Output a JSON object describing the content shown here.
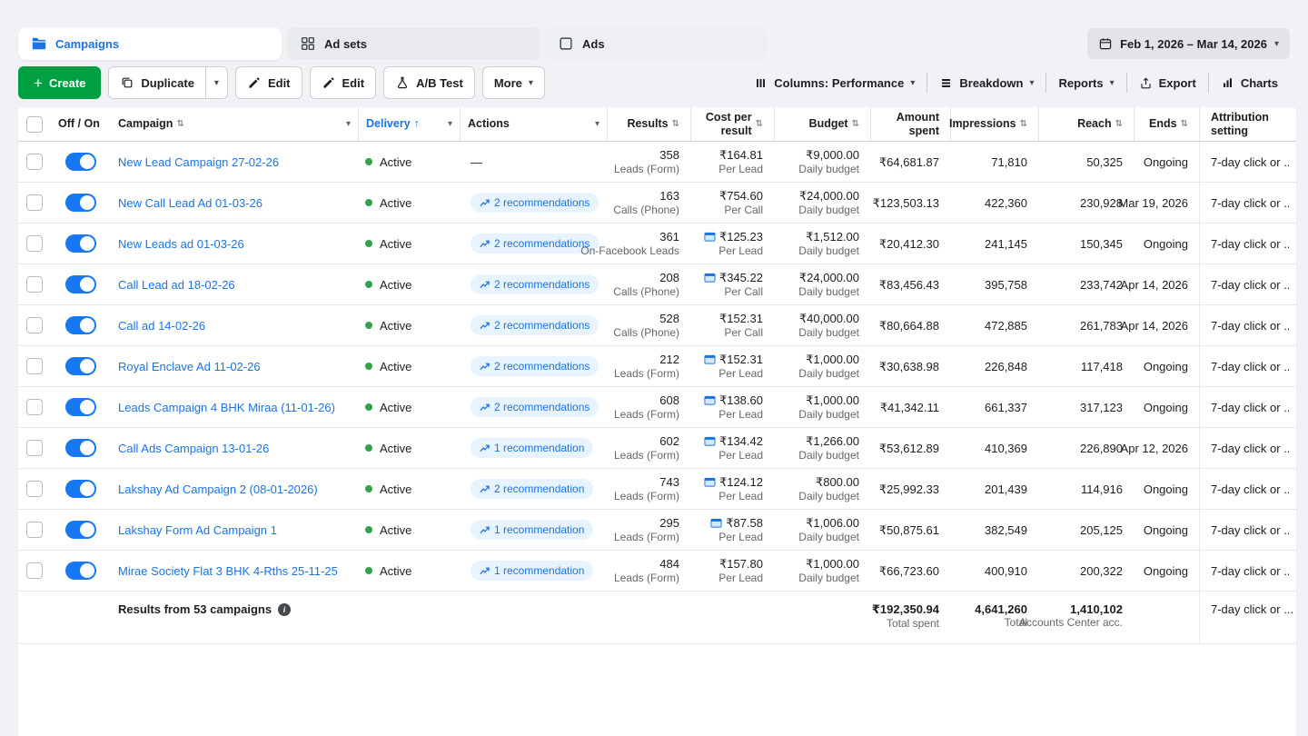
{
  "colors": {
    "accent_blue": "#1b74e4",
    "create_green": "#00a042",
    "status_green": "#31a24c",
    "pill_bg": "#e7f3ff"
  },
  "icons": [
    "campaigns-folder-icon",
    "adsets-grid-icon",
    "ads-square-icon",
    "calendar-icon",
    "plus-icon",
    "duplicate-icon",
    "pencil-icon",
    "ab-test-icon",
    "chevron-down-icon",
    "columns-icon",
    "breakdown-icon",
    "export-icon",
    "charts-icon",
    "trend-up-icon",
    "cost-info-icon",
    "info-icon",
    "sort-icon"
  ],
  "tabs": {
    "campaigns": {
      "label": "Campaigns",
      "active": true
    },
    "ad_sets": {
      "label": "Ad sets",
      "active": false
    },
    "ads": {
      "label": "Ads",
      "active": false
    }
  },
  "date_range": {
    "label": "Feb 1, 2026 – Mar 14, 2026"
  },
  "toolbar": {
    "create": "Create",
    "duplicate": "Duplicate",
    "edit_1": "Edit",
    "edit_2": "Edit",
    "ab_test": "A/B Test",
    "more": "More",
    "columns": "Columns: Performance",
    "breakdown": "Breakdown",
    "reports": "Reports",
    "export": "Export",
    "charts": "Charts"
  },
  "table": {
    "columns": [
      {
        "key": "select",
        "label": ""
      },
      {
        "key": "off_on",
        "label": "Off / On"
      },
      {
        "key": "campaign",
        "label": "Campaign"
      },
      {
        "key": "delivery",
        "label": "Delivery",
        "sorted": "asc"
      },
      {
        "key": "actions",
        "label": "Actions"
      },
      {
        "key": "results",
        "label": "Results"
      },
      {
        "key": "cost_per_result",
        "label": "Cost per result"
      },
      {
        "key": "budget",
        "label": "Budget"
      },
      {
        "key": "amount_spent",
        "label": "Amount spent"
      },
      {
        "key": "impressions",
        "label": "Impressions"
      },
      {
        "key": "reach",
        "label": "Reach"
      },
      {
        "key": "ends",
        "label": "Ends"
      },
      {
        "key": "attribution",
        "label": "Attribution setting"
      }
    ],
    "rows": [
      {
        "name": "New Lead Campaign 27-02-26",
        "toggle_on": true,
        "delivery": "Active",
        "recommendations": null,
        "results": "358",
        "results_label": "Leads (Form)",
        "cost": "₹164.81",
        "cost_label": "Per Lead",
        "cost_icon": false,
        "budget": "₹9,000.00",
        "budget_label": "Daily budget",
        "spent": "₹64,681.87",
        "impressions": "71,810",
        "reach": "50,325",
        "ends": "Ongoing",
        "attribution": "7-day click or ..."
      },
      {
        "name": "New Call Lead Ad 01-03-26",
        "toggle_on": true,
        "delivery": "Active",
        "recommendations": "2 recommendations",
        "results": "163",
        "results_label": "Calls (Phone)",
        "cost": "₹754.60",
        "cost_label": "Per Call",
        "cost_icon": false,
        "budget": "₹24,000.00",
        "budget_label": "Daily budget",
        "spent": "₹123,503.13",
        "impressions": "422,360",
        "reach": "230,928",
        "ends": "Mar 19, 2026",
        "attribution": "7-day click or ..."
      },
      {
        "name": "New Leads ad 01-03-26",
        "toggle_on": true,
        "delivery": "Active",
        "recommendations": "2 recommendations",
        "results": "361",
        "results_label": "On-Facebook Leads",
        "cost": "₹125.23",
        "cost_label": "Per Lead",
        "cost_icon": true,
        "budget": "₹1,512.00",
        "budget_label": "Daily budget",
        "spent": "₹20,412.30",
        "impressions": "241,145",
        "reach": "150,345",
        "ends": "Ongoing",
        "attribution": "7-day click or ..."
      },
      {
        "name": "Call Lead ad 18-02-26",
        "toggle_on": true,
        "delivery": "Active",
        "recommendations": "2 recommendations",
        "results": "208",
        "results_label": "Calls (Phone)",
        "cost": "₹345.22",
        "cost_label": "Per Call",
        "cost_icon": true,
        "budget": "₹24,000.00",
        "budget_label": "Daily budget",
        "spent": "₹83,456.43",
        "impressions": "395,758",
        "reach": "233,742",
        "ends": "Apr 14, 2026",
        "attribution": "7-day click or ..."
      },
      {
        "name": "Call ad 14-02-26",
        "toggle_on": true,
        "delivery": "Active",
        "recommendations": "2 recommendations",
        "results": "528",
        "results_label": "Calls (Phone)",
        "cost": "₹152.31",
        "cost_label": "Per Call",
        "cost_icon": false,
        "budget": "₹40,000.00",
        "budget_label": "Daily budget",
        "spent": "₹80,664.88",
        "impressions": "472,885",
        "reach": "261,783",
        "ends": "Apr 14, 2026",
        "attribution": "7-day click or ..."
      },
      {
        "name": "Royal Enclave Ad 11-02-26",
        "toggle_on": true,
        "delivery": "Active",
        "recommendations": "2 recommendations",
        "results": "212",
        "results_label": "Leads (Form)",
        "cost": "₹152.31",
        "cost_label": "Per Lead",
        "cost_icon": true,
        "budget": "₹1,000.00",
        "budget_label": "Daily budget",
        "spent": "₹30,638.98",
        "impressions": "226,848",
        "reach": "117,418",
        "ends": "Ongoing",
        "attribution": "7-day click or ..."
      },
      {
        "name": "Leads Campaign 4 BHK Miraa (11-01-26)",
        "toggle_on": true,
        "delivery": "Active",
        "recommendations": "2 recommendations",
        "results": "608",
        "results_label": "Leads (Form)",
        "cost": "₹138.60",
        "cost_label": "Per Lead",
        "cost_icon": true,
        "budget": "₹1,000.00",
        "budget_label": "Daily budget",
        "spent": "₹41,342.11",
        "impressions": "661,337",
        "reach": "317,123",
        "ends": "Ongoing",
        "attribution": "7-day click or ..."
      },
      {
        "name": "Call Ads Campaign 13-01-26",
        "toggle_on": true,
        "delivery": "Active",
        "recommendations": "1 recommendation",
        "results": "602",
        "results_label": "Leads (Form)",
        "cost": "₹134.42",
        "cost_label": "Per Lead",
        "cost_icon": true,
        "budget": "₹1,266.00",
        "budget_label": "Daily budget",
        "spent": "₹53,612.89",
        "impressions": "410,369",
        "reach": "226,890",
        "ends": "Apr 12, 2026",
        "attribution": "7-day click or ..."
      },
      {
        "name": "Lakshay Ad Campaign 2 (08-01-2026)",
        "toggle_on": true,
        "delivery": "Active",
        "recommendations": "2 recommendation",
        "results": "743",
        "results_label": "Leads (Form)",
        "cost": "₹124.12",
        "cost_label": "Per Lead",
        "cost_icon": true,
        "budget": "₹800.00",
        "budget_label": "Daily budget",
        "spent": "₹25,992.33",
        "impressions": "201,439",
        "reach": "114,916",
        "ends": "Ongoing",
        "attribution": "7-day click or ..."
      },
      {
        "name": "Lakshay Form Ad Campaign 1",
        "toggle_on": true,
        "delivery": "Active",
        "recommendations": "1 recommendation",
        "results": "295",
        "results_label": "Leads (Form)",
        "cost": "₹87.58",
        "cost_label": "Per Lead",
        "cost_icon": true,
        "budget": "₹1,006.00",
        "budget_label": "Daily budget",
        "spent": "₹50,875.61",
        "impressions": "382,549",
        "reach": "205,125",
        "ends": "Ongoing",
        "attribution": "7-day click or ..."
      },
      {
        "name": "Mirae Society Flat 3 BHK 4-Rths 25-11-25",
        "toggle_on": true,
        "delivery": "Active",
        "recommendations": "1 recommendation",
        "results": "484",
        "results_label": "Leads (Form)",
        "cost": "₹157.80",
        "cost_label": "Per Lead",
        "cost_icon": false,
        "budget": "₹1,000.00",
        "budget_label": "Daily budget",
        "spent": "₹66,723.60",
        "impressions": "400,910",
        "reach": "200,322",
        "ends": "Ongoing",
        "attribution": "7-day click or ..."
      }
    ],
    "footer": {
      "summary": "Results from 53 campaigns",
      "spent_total": "₹192,350.94",
      "spent_label": "Total spent",
      "impressions_total": "4,641,260",
      "impressions_label": "Total",
      "reach_total": "1,410,102",
      "reach_label": "Accounts Center acc.",
      "attribution": "7-day click or ..."
    }
  }
}
